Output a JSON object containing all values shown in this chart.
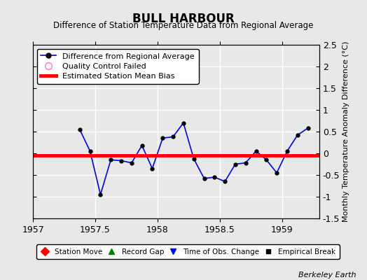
{
  "title": "BULL HARBOUR",
  "subtitle": "Difference of Station Temperature Data from Regional Average",
  "ylabel": "Monthly Temperature Anomaly Difference (°C)",
  "credit": "Berkeley Earth",
  "xlim": [
    1957.0,
    1959.3
  ],
  "ylim": [
    -1.5,
    2.5
  ],
  "xticks": [
    1957,
    1957.5,
    1958,
    1958.5,
    1959
  ],
  "xticklabels": [
    "1957",
    "1957.5",
    "1958",
    "1958.5",
    "1959"
  ],
  "yticks": [
    -1.5,
    -1.0,
    -0.5,
    0.0,
    0.5,
    1.0,
    1.5,
    2.0,
    2.5
  ],
  "background_color": "#e8e8e8",
  "plot_bg_color": "#e8e8e8",
  "grid_color": "white",
  "main_line_color": "blue",
  "main_marker_color": "black",
  "bias_line_color": "red",
  "bias_value": -0.05,
  "x_data": [
    1957.375,
    1957.458,
    1957.542,
    1957.625,
    1957.708,
    1957.792,
    1957.875,
    1957.958,
    1958.042,
    1958.125,
    1958.208,
    1958.292,
    1958.375,
    1958.458,
    1958.542,
    1958.625,
    1958.708,
    1958.792,
    1958.875,
    1958.958,
    1959.042,
    1959.125,
    1959.208
  ],
  "y_data": [
    0.55,
    0.05,
    -0.95,
    -0.15,
    -0.17,
    -0.22,
    0.18,
    -0.35,
    0.35,
    0.38,
    0.7,
    -0.13,
    -0.58,
    -0.55,
    -0.65,
    -0.25,
    -0.22,
    0.05,
    -0.15,
    -0.45,
    0.05,
    0.42,
    0.58
  ]
}
